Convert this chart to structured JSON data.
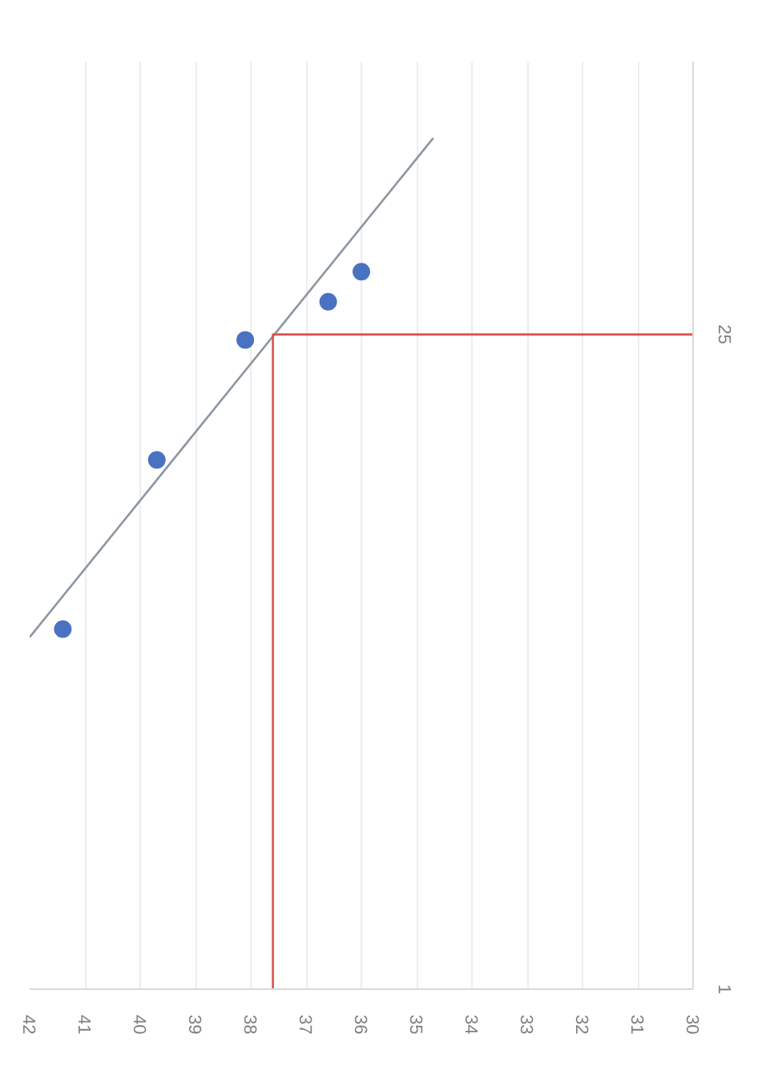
{
  "chart_data": {
    "type": "scatter",
    "xlim": [
      42,
      30
    ],
    "xticks": [
      42,
      41,
      40,
      39,
      38,
      37,
      36,
      35,
      34,
      33,
      32,
      31,
      30
    ],
    "ylim": [
      1,
      35
    ],
    "yticks": [
      1,
      25
    ],
    "grid": "x",
    "series": [
      {
        "color": "#4a72c2",
        "x": [
          41.4,
          39.7,
          38.1,
          36.6,
          36.0
        ],
        "values": [
          14.2,
          20.4,
          24.8,
          26.2,
          27.3
        ]
      },
      {
        "type": "line",
        "color": "#8c96a0",
        "x": [
          42,
          34.7
        ],
        "values": [
          13.9,
          32.2
        ]
      },
      {
        "type": "line",
        "color": "#d9534f",
        "x": [
          30,
          37.6,
          37.6
        ],
        "values": [
          25,
          25,
          1
        ]
      }
    ]
  }
}
